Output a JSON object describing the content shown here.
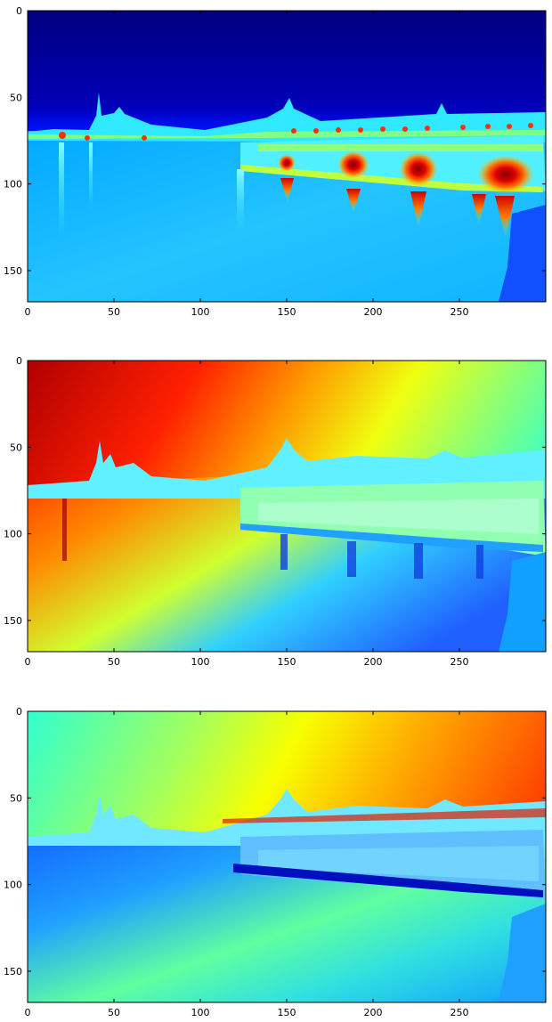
{
  "figure": {
    "background": "#ffffff",
    "colormap": "jet",
    "colors": {
      "frame": "#000000",
      "tick_label": "#000000"
    }
  },
  "chart_data": [
    {
      "type": "heatmap",
      "title": "",
      "xlabel": "",
      "ylabel": "",
      "xlim": [
        0,
        300
      ],
      "ylim": [
        168,
        0
      ],
      "x_ticks": [
        0,
        50,
        100,
        150,
        200,
        250
      ],
      "y_ticks": [
        0,
        50,
        100,
        150
      ],
      "x_tick_labels": [
        "0",
        "50",
        "100",
        "150",
        "200",
        "250"
      ],
      "y_tick_labels": [
        "0",
        "50",
        "100",
        "150"
      ],
      "grid": false,
      "legend": "none",
      "horizon_y": 72,
      "scene": {
        "sky_value": 0.05,
        "water_value": 0.35,
        "highlights": [
          {
            "x": 187,
            "y": 88,
            "value": 0.95
          },
          {
            "x": 225,
            "y": 90,
            "value": 0.95
          },
          {
            "x": 275,
            "y": 92,
            "value": 0.98
          },
          {
            "x": 150,
            "y": 85,
            "value": 0.9
          },
          {
            "x": 20,
            "y": 73,
            "value": 0.85
          }
        ]
      }
    },
    {
      "type": "heatmap",
      "title": "",
      "xlabel": "",
      "ylabel": "",
      "xlim": [
        0,
        300
      ],
      "ylim": [
        168,
        0
      ],
      "x_ticks": [
        0,
        50,
        100,
        150,
        200,
        250
      ],
      "y_ticks": [
        0,
        50,
        100,
        150
      ],
      "x_tick_labels": [
        "0",
        "50",
        "100",
        "150",
        "200",
        "250"
      ],
      "y_tick_labels": [
        "0",
        "50",
        "100",
        "150"
      ],
      "grid": false,
      "legend": "none",
      "horizon_y": 73,
      "scene": {
        "gradient_high_value": 0.95,
        "gradient_low_value": 0.45,
        "buildings_value": 0.45
      }
    },
    {
      "type": "heatmap",
      "title": "",
      "xlabel": "",
      "ylabel": "",
      "xlim": [
        0,
        300
      ],
      "ylim": [
        168,
        0
      ],
      "x_ticks": [
        0,
        50,
        100,
        150,
        200,
        250
      ],
      "y_ticks": [
        0,
        50,
        100,
        150
      ],
      "x_tick_labels": [
        "0",
        "50",
        "100",
        "150",
        "200",
        "250"
      ],
      "y_tick_labels": [
        "0",
        "50",
        "100",
        "150"
      ],
      "grid": false,
      "legend": "none",
      "horizon_y": 72,
      "scene": {
        "gradient_high_value": 0.82,
        "gradient_low_value": 0.42,
        "water_value": 0.38,
        "buildings_value": 0.5
      }
    }
  ]
}
